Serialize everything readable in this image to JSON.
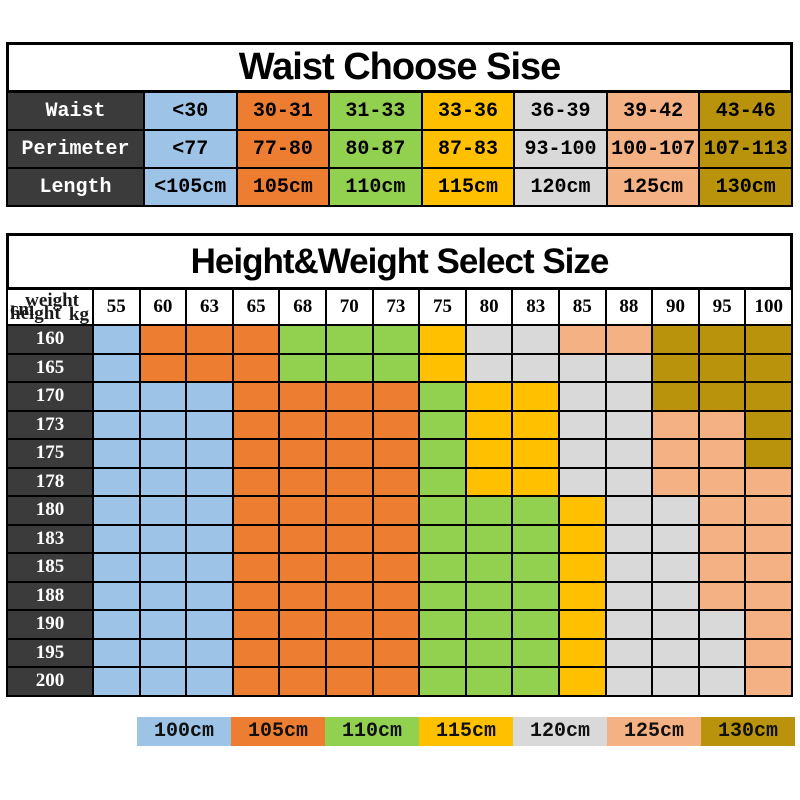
{
  "colors": {
    "blue": "#9DC3E6",
    "orange": "#ED7D31",
    "green": "#92D050",
    "yellow": "#FFC000",
    "gray": "#D9D9D9",
    "peach": "#F4B183",
    "gold": "#B8930B",
    "dark": "#3B3B3B",
    "white": "#FFFFFF"
  },
  "waist_table": {
    "title": "Waist Choose Sise",
    "rows": [
      {
        "label": "Waist",
        "cells": [
          {
            "text": "<30",
            "color": "blue"
          },
          {
            "text": "30-31",
            "color": "orange"
          },
          {
            "text": "31-33",
            "color": "green"
          },
          {
            "text": "33-36",
            "color": "yellow"
          },
          {
            "text": "36-39",
            "color": "gray"
          },
          {
            "text": "39-42",
            "color": "peach"
          },
          {
            "text": "43-46",
            "color": "gold"
          }
        ]
      },
      {
        "label": "Perimeter",
        "cells": [
          {
            "text": "<77",
            "color": "blue"
          },
          {
            "text": "77-80",
            "color": "orange"
          },
          {
            "text": "80-87",
            "color": "green"
          },
          {
            "text": "87-83",
            "color": "yellow"
          },
          {
            "text": "93-100",
            "color": "gray"
          },
          {
            "text": "100-107",
            "color": "peach"
          },
          {
            "text": "107-113",
            "color": "gold"
          }
        ]
      },
      {
        "label": "Length",
        "cells": [
          {
            "text": "<105cm",
            "color": "blue"
          },
          {
            "text": "105cm",
            "color": "orange"
          },
          {
            "text": "110cm",
            "color": "green"
          },
          {
            "text": "115cm",
            "color": "yellow"
          },
          {
            "text": "120cm",
            "color": "gray"
          },
          {
            "text": "125cm",
            "color": "peach"
          },
          {
            "text": "130cm",
            "color": "gold"
          }
        ]
      }
    ]
  },
  "size_table": {
    "title": "Height&Weight Select Size",
    "corner": {
      "cm": "cm",
      "height": "height",
      "weight": "weight",
      "kg": "kg"
    },
    "weights": [
      "55",
      "60",
      "63",
      "65",
      "68",
      "70",
      "73",
      "75",
      "80",
      "83",
      "85",
      "88",
      "90",
      "95",
      "100"
    ],
    "rows": [
      {
        "height": "160",
        "cells": [
          "blue",
          "orange",
          "orange",
          "orange",
          "green",
          "green",
          "green",
          "yellow",
          "gray",
          "gray",
          "peach",
          "peach",
          "gold",
          "gold",
          "gold"
        ]
      },
      {
        "height": "165",
        "cells": [
          "blue",
          "orange",
          "orange",
          "orange",
          "green",
          "green",
          "green",
          "yellow",
          "gray",
          "gray",
          "gray",
          "gray",
          "gold",
          "gold",
          "gold"
        ]
      },
      {
        "height": "170",
        "cells": [
          "blue",
          "blue",
          "blue",
          "orange",
          "orange",
          "orange",
          "orange",
          "green",
          "yellow",
          "yellow",
          "gray",
          "gray",
          "gold",
          "gold",
          "gold"
        ]
      },
      {
        "height": "173",
        "cells": [
          "blue",
          "blue",
          "blue",
          "orange",
          "orange",
          "orange",
          "orange",
          "green",
          "yellow",
          "yellow",
          "gray",
          "gray",
          "peach",
          "peach",
          "gold"
        ]
      },
      {
        "height": "175",
        "cells": [
          "blue",
          "blue",
          "blue",
          "orange",
          "orange",
          "orange",
          "orange",
          "green",
          "yellow",
          "yellow",
          "gray",
          "gray",
          "peach",
          "peach",
          "gold"
        ]
      },
      {
        "height": "178",
        "cells": [
          "blue",
          "blue",
          "blue",
          "orange",
          "orange",
          "orange",
          "orange",
          "green",
          "yellow",
          "yellow",
          "gray",
          "gray",
          "peach",
          "peach",
          "peach"
        ]
      },
      {
        "height": "180",
        "cells": [
          "blue",
          "blue",
          "blue",
          "orange",
          "orange",
          "orange",
          "orange",
          "green",
          "green",
          "green",
          "yellow",
          "gray",
          "gray",
          "peach",
          "peach"
        ]
      },
      {
        "height": "183",
        "cells": [
          "blue",
          "blue",
          "blue",
          "orange",
          "orange",
          "orange",
          "orange",
          "green",
          "green",
          "green",
          "yellow",
          "gray",
          "gray",
          "peach",
          "peach"
        ]
      },
      {
        "height": "185",
        "cells": [
          "blue",
          "blue",
          "blue",
          "orange",
          "orange",
          "orange",
          "orange",
          "green",
          "green",
          "green",
          "yellow",
          "gray",
          "gray",
          "peach",
          "peach"
        ]
      },
      {
        "height": "188",
        "cells": [
          "blue",
          "blue",
          "blue",
          "orange",
          "orange",
          "orange",
          "orange",
          "green",
          "green",
          "green",
          "yellow",
          "gray",
          "gray",
          "peach",
          "peach"
        ]
      },
      {
        "height": "190",
        "cells": [
          "blue",
          "blue",
          "blue",
          "orange",
          "orange",
          "orange",
          "orange",
          "green",
          "green",
          "green",
          "yellow",
          "gray",
          "gray",
          "gray",
          "peach"
        ]
      },
      {
        "height": "195",
        "cells": [
          "blue",
          "blue",
          "blue",
          "orange",
          "orange",
          "orange",
          "orange",
          "green",
          "green",
          "green",
          "yellow",
          "gray",
          "gray",
          "gray",
          "peach"
        ]
      },
      {
        "height": "200",
        "cells": [
          "blue",
          "blue",
          "blue",
          "orange",
          "orange",
          "orange",
          "orange",
          "green",
          "green",
          "green",
          "yellow",
          "gray",
          "gray",
          "gray",
          "peach"
        ]
      }
    ]
  },
  "legend": [
    {
      "label": "100cm",
      "color": "blue"
    },
    {
      "label": "105cm",
      "color": "orange"
    },
    {
      "label": "110cm",
      "color": "green"
    },
    {
      "label": "115cm",
      "color": "yellow"
    },
    {
      "label": "120cm",
      "color": "gray"
    },
    {
      "label": "125cm",
      "color": "peach"
    },
    {
      "label": "130cm",
      "color": "gold"
    }
  ],
  "chart_data": [
    {
      "type": "table",
      "title": "Waist Choose Sise",
      "row_headers": [
        "Waist",
        "Perimeter",
        "Length"
      ],
      "rows": [
        [
          "<30",
          "30-31",
          "31-33",
          "33-36",
          "36-39",
          "39-42",
          "43-46"
        ],
        [
          "<77",
          "77-80",
          "80-87",
          "87-83",
          "93-100",
          "100-107",
          "107-113"
        ],
        [
          "<105cm",
          "105cm",
          "110cm",
          "115cm",
          "120cm",
          "125cm",
          "130cm"
        ]
      ]
    },
    {
      "type": "heatmap",
      "title": "Height&Weight Select Size",
      "xlabel": "weight kg",
      "ylabel": "cm height",
      "x": [
        55,
        60,
        63,
        65,
        68,
        70,
        73,
        75,
        80,
        83,
        85,
        88,
        90,
        95,
        100
      ],
      "y": [
        160,
        165,
        170,
        173,
        175,
        178,
        180,
        183,
        185,
        188,
        190,
        195,
        200
      ],
      "legend": {
        "100cm": "#9DC3E6",
        "105cm": "#ED7D31",
        "110cm": "#92D050",
        "115cm": "#FFC000",
        "120cm": "#D9D9D9",
        "125cm": "#F4B183",
        "130cm": "#B8930B"
      },
      "values": [
        [
          "100cm",
          "105cm",
          "105cm",
          "105cm",
          "110cm",
          "110cm",
          "110cm",
          "115cm",
          "120cm",
          "120cm",
          "125cm",
          "125cm",
          "130cm",
          "130cm",
          "130cm"
        ],
        [
          "100cm",
          "105cm",
          "105cm",
          "105cm",
          "110cm",
          "110cm",
          "110cm",
          "115cm",
          "120cm",
          "120cm",
          "120cm",
          "120cm",
          "130cm",
          "130cm",
          "130cm"
        ],
        [
          "100cm",
          "100cm",
          "100cm",
          "105cm",
          "105cm",
          "105cm",
          "105cm",
          "110cm",
          "115cm",
          "115cm",
          "120cm",
          "120cm",
          "130cm",
          "130cm",
          "130cm"
        ],
        [
          "100cm",
          "100cm",
          "100cm",
          "105cm",
          "105cm",
          "105cm",
          "105cm",
          "110cm",
          "115cm",
          "115cm",
          "120cm",
          "120cm",
          "125cm",
          "125cm",
          "130cm"
        ],
        [
          "100cm",
          "100cm",
          "100cm",
          "105cm",
          "105cm",
          "105cm",
          "105cm",
          "110cm",
          "115cm",
          "115cm",
          "120cm",
          "120cm",
          "125cm",
          "125cm",
          "130cm"
        ],
        [
          "100cm",
          "100cm",
          "100cm",
          "105cm",
          "105cm",
          "105cm",
          "105cm",
          "110cm",
          "115cm",
          "115cm",
          "120cm",
          "120cm",
          "125cm",
          "125cm",
          "125cm"
        ],
        [
          "100cm",
          "100cm",
          "100cm",
          "105cm",
          "105cm",
          "105cm",
          "105cm",
          "110cm",
          "110cm",
          "110cm",
          "115cm",
          "120cm",
          "120cm",
          "125cm",
          "125cm"
        ],
        [
          "100cm",
          "100cm",
          "100cm",
          "105cm",
          "105cm",
          "105cm",
          "105cm",
          "110cm",
          "110cm",
          "110cm",
          "115cm",
          "120cm",
          "120cm",
          "125cm",
          "125cm"
        ],
        [
          "100cm",
          "100cm",
          "100cm",
          "105cm",
          "105cm",
          "105cm",
          "105cm",
          "110cm",
          "110cm",
          "110cm",
          "115cm",
          "120cm",
          "120cm",
          "125cm",
          "125cm"
        ],
        [
          "100cm",
          "100cm",
          "100cm",
          "105cm",
          "105cm",
          "105cm",
          "105cm",
          "110cm",
          "110cm",
          "110cm",
          "115cm",
          "120cm",
          "120cm",
          "125cm",
          "125cm"
        ],
        [
          "100cm",
          "100cm",
          "100cm",
          "105cm",
          "105cm",
          "105cm",
          "105cm",
          "110cm",
          "110cm",
          "110cm",
          "115cm",
          "120cm",
          "120cm",
          "120cm",
          "125cm"
        ],
        [
          "100cm",
          "100cm",
          "100cm",
          "105cm",
          "105cm",
          "105cm",
          "105cm",
          "110cm",
          "110cm",
          "110cm",
          "115cm",
          "120cm",
          "120cm",
          "120cm",
          "125cm"
        ],
        [
          "100cm",
          "100cm",
          "100cm",
          "105cm",
          "105cm",
          "105cm",
          "105cm",
          "110cm",
          "110cm",
          "110cm",
          "115cm",
          "120cm",
          "120cm",
          "120cm",
          "125cm"
        ]
      ]
    }
  ]
}
